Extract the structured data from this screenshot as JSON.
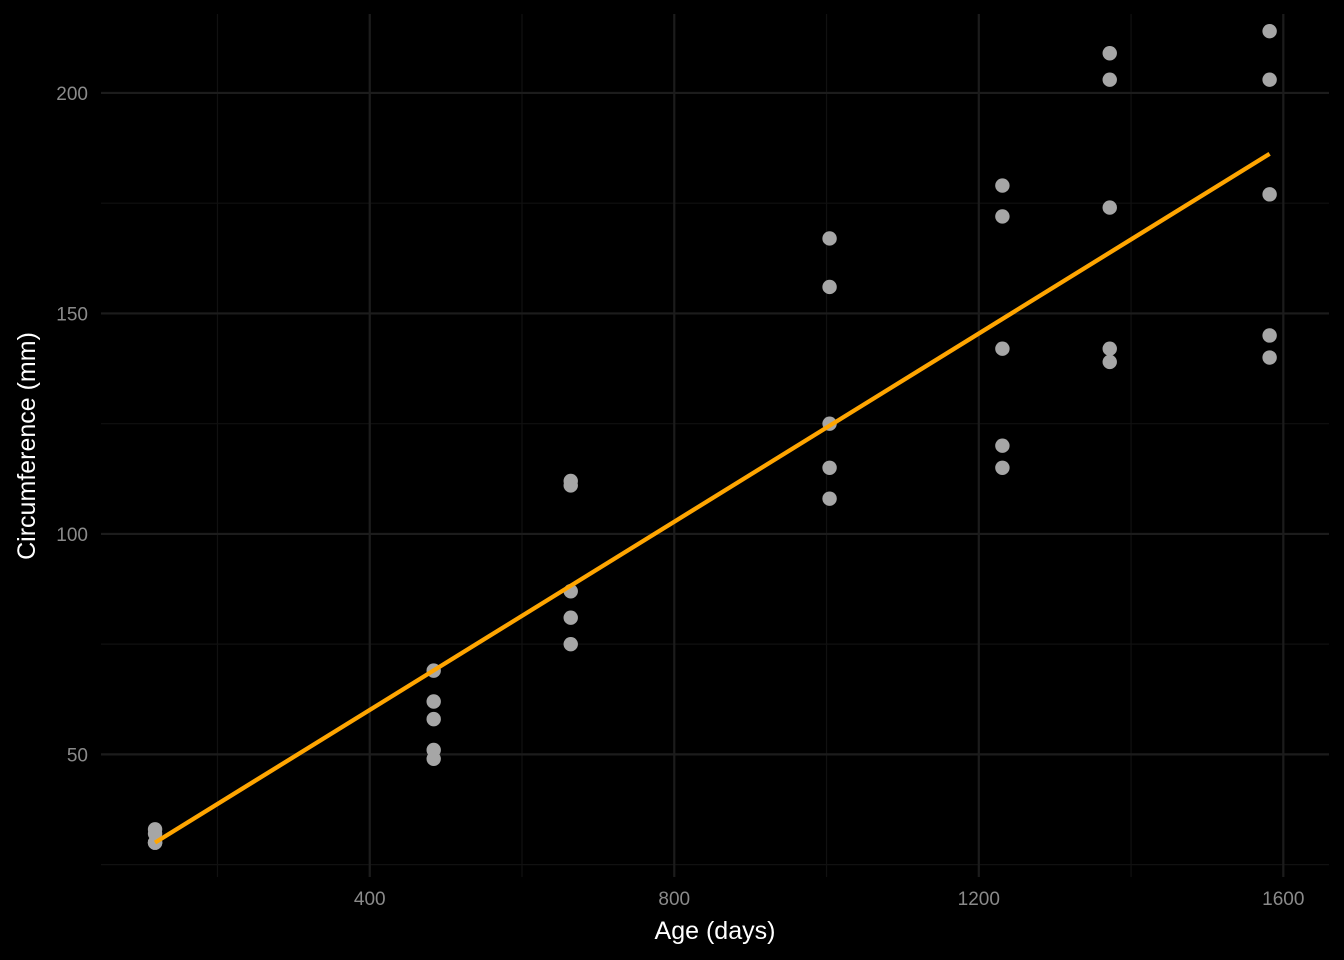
{
  "chart_data": {
    "type": "scatter",
    "xlabel": "Age (days)",
    "ylabel": "Circumference (mm)",
    "xlim": [
      47,
      1660
    ],
    "ylim": [
      22.2,
      217.9
    ],
    "x_ticks": [
      400,
      800,
      1200,
      1600
    ],
    "y_ticks": [
      50,
      100,
      150,
      200
    ],
    "x_minor": [
      200,
      600,
      1000,
      1400
    ],
    "y_minor": [
      25,
      75,
      125,
      175
    ],
    "grid": true,
    "legend": "none",
    "colors": {
      "background": "#000000",
      "grid": "#1c1c1c",
      "points": "#a6a6a6",
      "fit_line": "#ffa500"
    },
    "points": [
      {
        "x": 118,
        "y": 30
      },
      {
        "x": 118,
        "y": 33
      },
      {
        "x": 118,
        "y": 30
      },
      {
        "x": 118,
        "y": 32
      },
      {
        "x": 118,
        "y": 30
      },
      {
        "x": 484,
        "y": 58
      },
      {
        "x": 484,
        "y": 69
      },
      {
        "x": 484,
        "y": 51
      },
      {
        "x": 484,
        "y": 62
      },
      {
        "x": 484,
        "y": 49
      },
      {
        "x": 664,
        "y": 87
      },
      {
        "x": 664,
        "y": 111
      },
      {
        "x": 664,
        "y": 75
      },
      {
        "x": 664,
        "y": 112
      },
      {
        "x": 664,
        "y": 81
      },
      {
        "x": 1004,
        "y": 115
      },
      {
        "x": 1004,
        "y": 156
      },
      {
        "x": 1004,
        "y": 108
      },
      {
        "x": 1004,
        "y": 167
      },
      {
        "x": 1004,
        "y": 125
      },
      {
        "x": 1231,
        "y": 120
      },
      {
        "x": 1231,
        "y": 172
      },
      {
        "x": 1231,
        "y": 115
      },
      {
        "x": 1231,
        "y": 179
      },
      {
        "x": 1231,
        "y": 142
      },
      {
        "x": 1372,
        "y": 142
      },
      {
        "x": 1372,
        "y": 203
      },
      {
        "x": 1372,
        "y": 139
      },
      {
        "x": 1372,
        "y": 209
      },
      {
        "x": 1372,
        "y": 174
      },
      {
        "x": 1582,
        "y": 145
      },
      {
        "x": 1582,
        "y": 203
      },
      {
        "x": 1582,
        "y": 140
      },
      {
        "x": 1582,
        "y": 214
      },
      {
        "x": 1582,
        "y": 177
      }
    ],
    "fit_line": {
      "x": [
        118,
        1582
      ],
      "y": [
        30.0,
        186.2
      ]
    }
  }
}
